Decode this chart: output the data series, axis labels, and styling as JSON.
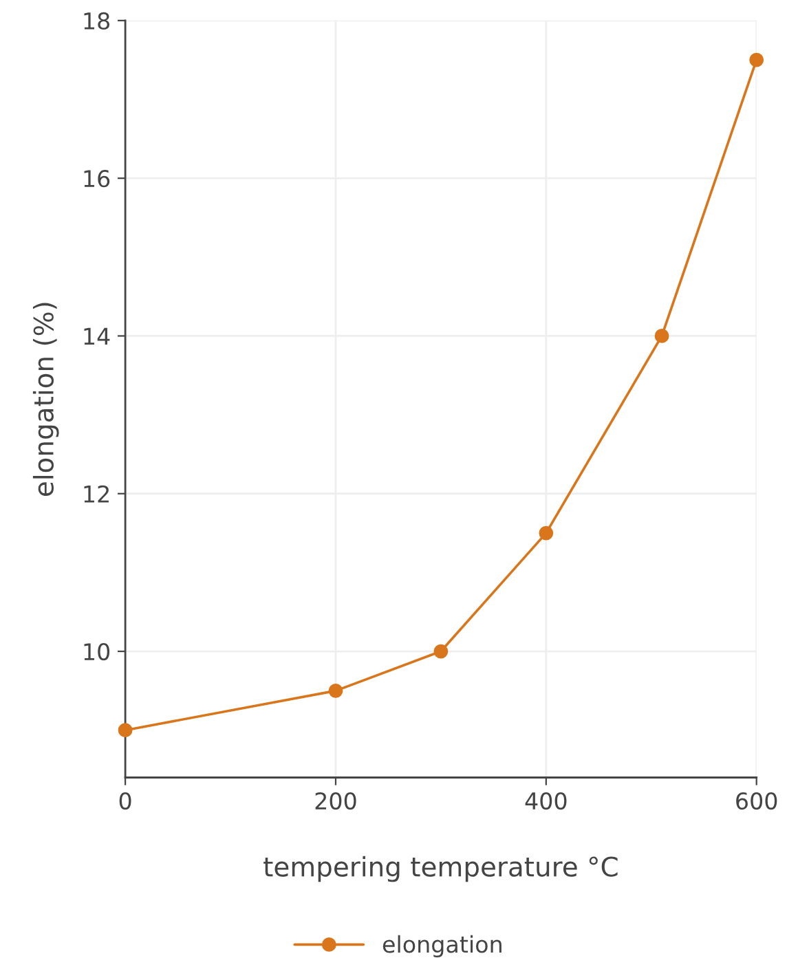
{
  "chart_data": {
    "type": "line",
    "xlabel": "tempering temperature °C",
    "ylabel": "elongation (%)",
    "x": [
      0,
      200,
      300,
      400,
      510,
      600
    ],
    "series": [
      {
        "name": "elongation",
        "color": "#d9761c",
        "values": [
          9,
          9.5,
          10,
          11.5,
          14,
          17.5
        ]
      }
    ],
    "xlim": [
      0,
      600
    ],
    "xticks": [
      0,
      200,
      400,
      600
    ],
    "ylim": [
      8.4,
      18
    ],
    "yticks": [
      10,
      12,
      14,
      16,
      18
    ],
    "grid": true,
    "legend": "bottom",
    "marker": "circle",
    "line_style": "solid"
  }
}
